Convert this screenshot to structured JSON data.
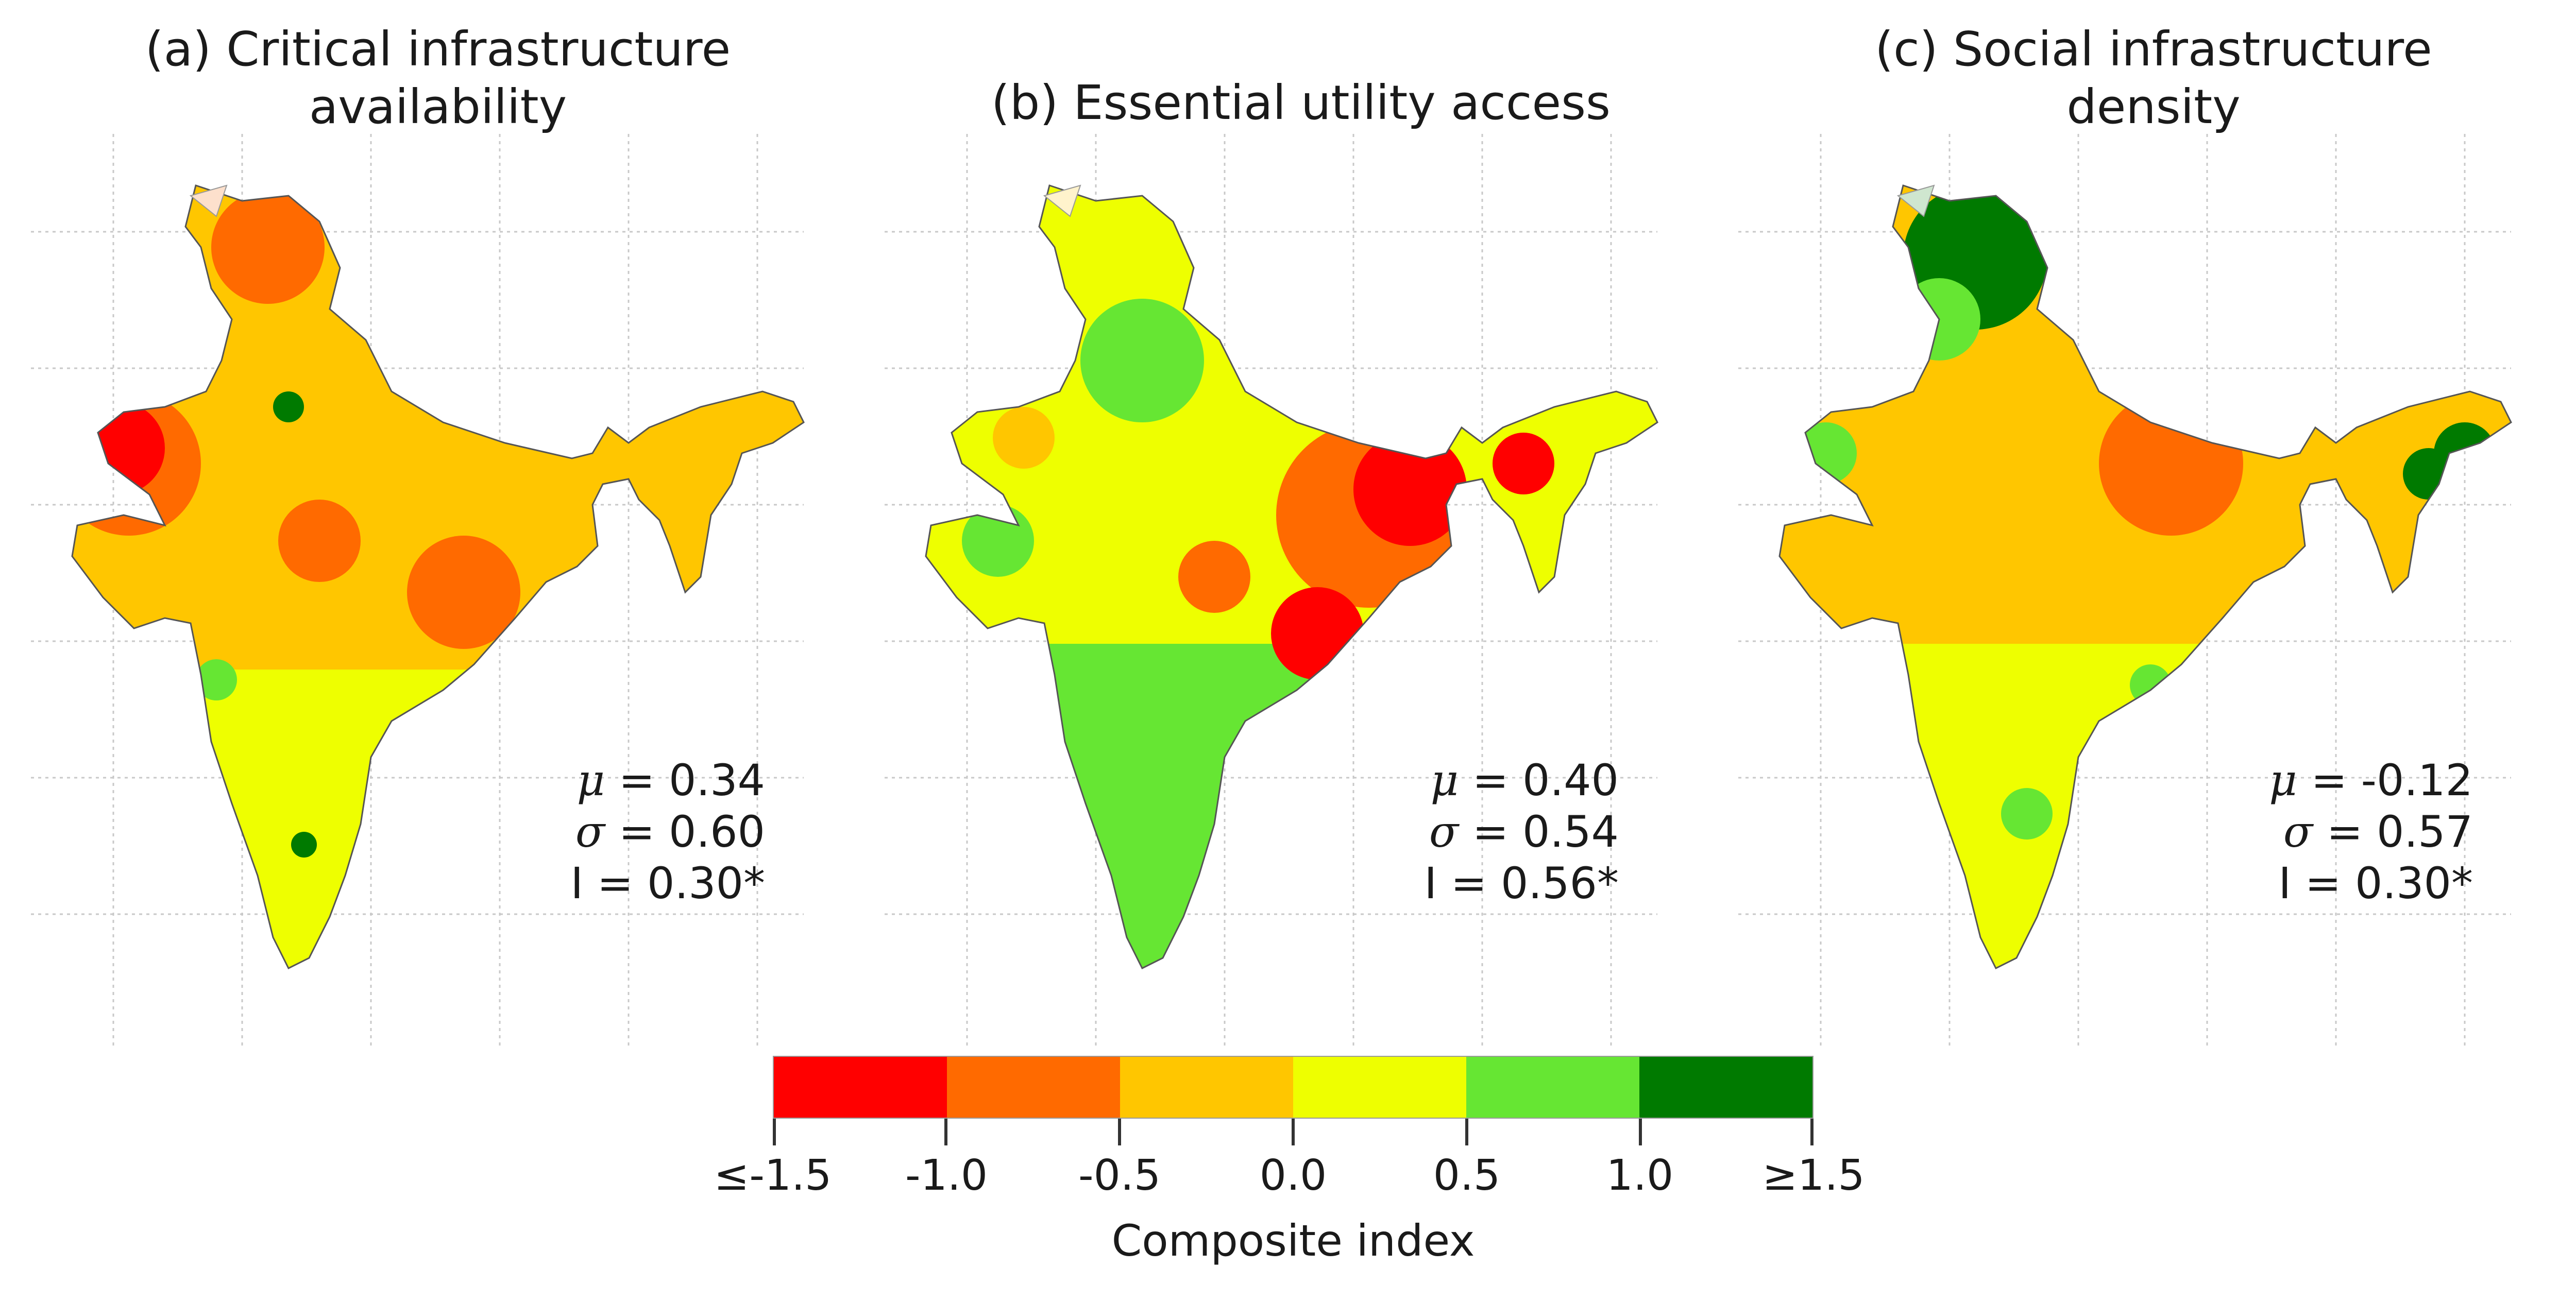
{
  "panels": [
    {
      "title_line1": "(a) Critical infrastructure",
      "title_line2": "availability",
      "mu_label": "μ",
      "mu_value": "= 0.34",
      "sigma_label": "σ",
      "sigma_value": "= 0.60",
      "i_text": "I = 0.30*"
    },
    {
      "title_line1": "(b) Essential utility access",
      "title_line2": "",
      "mu_label": "μ",
      "mu_value": "= 0.40",
      "sigma_label": "σ",
      "sigma_value": "= 0.54",
      "i_text": "I = 0.56*"
    },
    {
      "title_line1": "(c) Social infrastructure",
      "title_line2": "density",
      "mu_label": "μ",
      "mu_value": "= -0.12",
      "sigma_label": "σ",
      "sigma_value": "= 0.57",
      "i_text": "I = 0.30*"
    }
  ],
  "legend": {
    "title": "Composite index",
    "ticks": [
      "≤-1.5",
      "-1.0",
      "-0.5",
      "0.0",
      "0.5",
      "1.0",
      "≥1.5"
    ],
    "colors": [
      "#ff0000",
      "#ff6a00",
      "#ffc600",
      "#eeff00",
      "#66e633",
      "#007a00"
    ]
  }
}
